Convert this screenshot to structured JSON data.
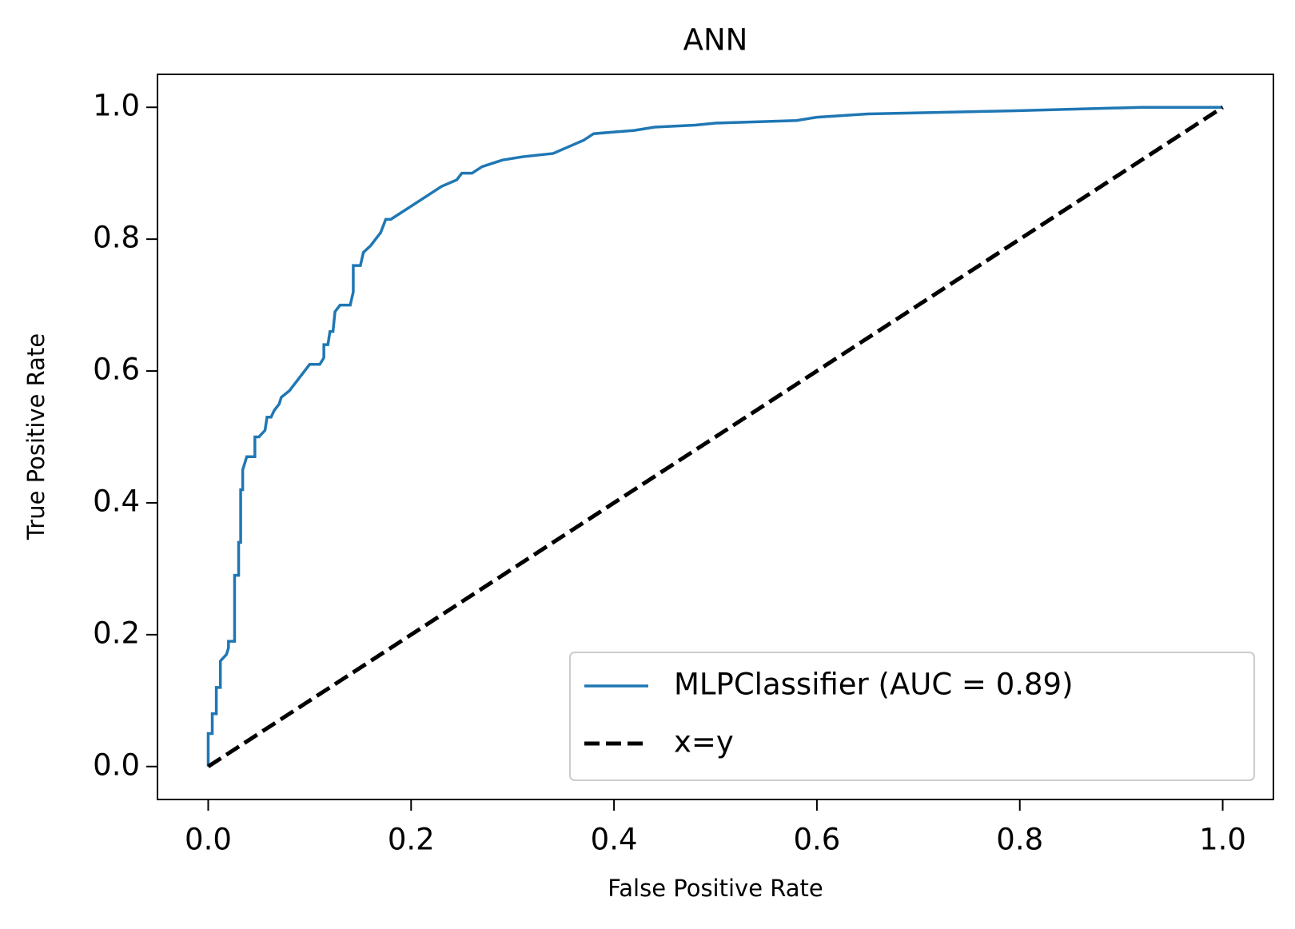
{
  "chart_data": {
    "type": "line",
    "title": "ANN",
    "xlabel": "False Positive Rate",
    "ylabel": "True Positive Rate",
    "xlim": [
      -0.05,
      1.05
    ],
    "ylim": [
      -0.05,
      1.05
    ],
    "xticks": [
      {
        "value": 0,
        "label": "0.0"
      },
      0.2,
      0.4,
      0.6,
      0.8,
      {
        "value": 1,
        "label": "1.0"
      }
    ],
    "yticks": [
      {
        "value": 0,
        "label": "0.0"
      },
      0.2,
      0.4,
      0.6,
      0.8,
      {
        "value": 1,
        "label": "1.0"
      }
    ],
    "legend": "lower right",
    "series": [
      {
        "name": "MLPClassifier (AUC = 0.89)",
        "color": "#1f77b4",
        "linestyle": "solid",
        "x": [
          0,
          0,
          0.004,
          0.004,
          0.008,
          0.008,
          0.012,
          0.012,
          0.018,
          0.02,
          0.02,
          0.026,
          0.026,
          0.03,
          0.03,
          0.032,
          0.032,
          0.034,
          0.034,
          0.036,
          0.038,
          0.046,
          0.046,
          0.05,
          0.056,
          0.058,
          0.062,
          0.065,
          0.07,
          0.072,
          0.08,
          0.085,
          0.09,
          0.095,
          0.1,
          0.11,
          0.114,
          0.114,
          0.118,
          0.12,
          0.123,
          0.125,
          0.13,
          0.14,
          0.143,
          0.143,
          0.15,
          0.153,
          0.16,
          0.165,
          0.17,
          0.175,
          0.18,
          0.19,
          0.2,
          0.21,
          0.22,
          0.23,
          0.245,
          0.25,
          0.26,
          0.27,
          0.28,
          0.29,
          0.31,
          0.34,
          0.355,
          0.37,
          0.38,
          0.42,
          0.44,
          0.48,
          0.5,
          0.58,
          0.6,
          0.65,
          0.8,
          0.92,
          1
        ],
        "y": [
          0,
          0.05,
          0.05,
          0.08,
          0.08,
          0.12,
          0.12,
          0.16,
          0.17,
          0.18,
          0.19,
          0.19,
          0.29,
          0.29,
          0.34,
          0.34,
          0.42,
          0.42,
          0.45,
          0.46,
          0.47,
          0.47,
          0.5,
          0.5,
          0.51,
          0.53,
          0.53,
          0.54,
          0.55,
          0.56,
          0.57,
          0.58,
          0.59,
          0.6,
          0.61,
          0.61,
          0.62,
          0.64,
          0.64,
          0.66,
          0.66,
          0.69,
          0.7,
          0.7,
          0.72,
          0.76,
          0.76,
          0.78,
          0.79,
          0.8,
          0.81,
          0.83,
          0.83,
          0.84,
          0.85,
          0.86,
          0.87,
          0.88,
          0.89,
          0.9,
          0.9,
          0.91,
          0.915,
          0.92,
          0.925,
          0.93,
          0.94,
          0.95,
          0.96,
          0.965,
          0.97,
          0.973,
          0.976,
          0.98,
          0.985,
          0.99,
          0.995,
          1,
          1
        ]
      },
      {
        "name": "x=y",
        "color": "#000000",
        "linestyle": "dashed",
        "x": [
          0,
          1
        ],
        "y": [
          0,
          1
        ]
      }
    ]
  }
}
